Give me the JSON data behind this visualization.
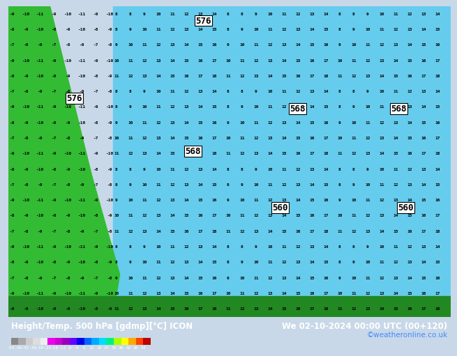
{
  "title_left": "Height/Temp. 500 hPa [gdmp][°C] ICON",
  "title_right": "We 02-10-2024 00:00 UTC (00+120)",
  "credit": "©weatheronline.co.uk",
  "colorbar_values": [
    -54,
    -48,
    -42,
    -36,
    -30,
    -24,
    -18,
    -12,
    -6,
    0,
    6,
    12,
    18,
    24,
    30,
    36,
    42,
    48,
    54
  ],
  "colorbar_colors": [
    "#5a5a5a",
    "#7a7a7a",
    "#9a9a9a",
    "#bbbbbb",
    "#dddddd",
    "#ee00ee",
    "#cc00cc",
    "#aa00aa",
    "#8800ff",
    "#0000ff",
    "#0066ff",
    "#00aaff",
    "#00ddff",
    "#00ff88",
    "#88ff00",
    "#ffff00",
    "#ffaa00",
    "#ff5500",
    "#cc0000"
  ],
  "map_bg_color": "#00aaff",
  "land_green": "#22aa22",
  "fig_bg": "#c8e8ff",
  "bottom_bar_color": "#006600",
  "label_color_left": "#000000",
  "label_color_right": "#000000",
  "credit_color": "#0000cc"
}
